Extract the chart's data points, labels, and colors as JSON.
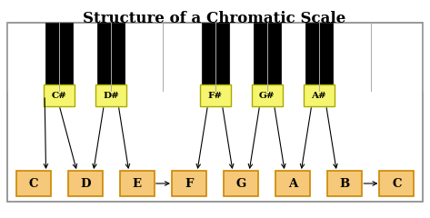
{
  "title": "Structure of a Chromatic Scale",
  "title_fontsize": 12,
  "background_color": "#ffffff",
  "piano_bg": "#ffffff",
  "piano_border": "#888888",
  "black_key_color": "#000000",
  "black_label_face": "#f5f570",
  "black_label_edge": "#aaaa00",
  "white_label_face": "#f5c87a",
  "white_label_edge": "#cc8800",
  "white_notes": [
    "C",
    "D",
    "E",
    "F",
    "G",
    "A",
    "B",
    "C"
  ],
  "black_notes_labels": [
    "C#",
    "D#",
    "F#",
    "G#",
    "A#"
  ],
  "black_positions_x": [
    1.0,
    2.0,
    4.0,
    5.0,
    6.0
  ],
  "white_positions_x": [
    0.5,
    1.5,
    2.5,
    3.5,
    4.5,
    5.5,
    6.5,
    7.5
  ],
  "arrow_color": "#000000"
}
